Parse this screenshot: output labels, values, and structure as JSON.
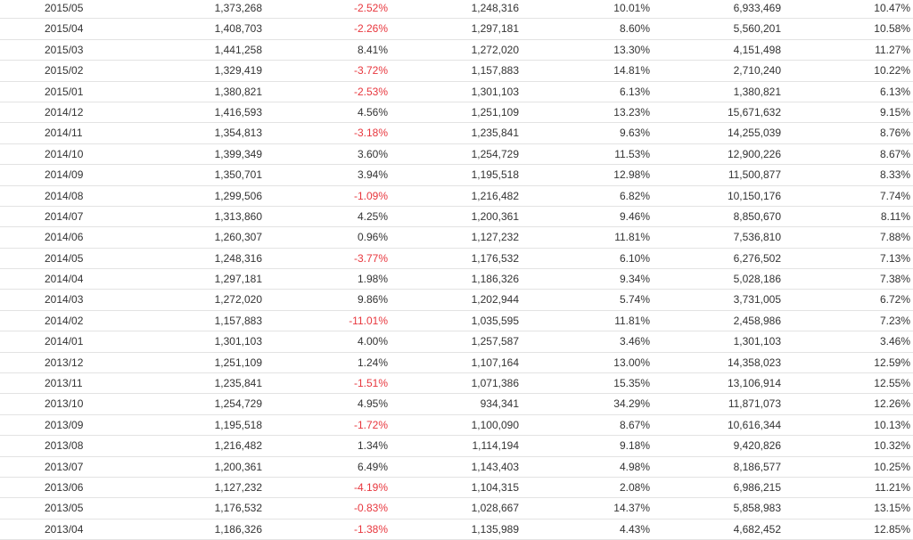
{
  "colors": {
    "text": "#333333",
    "negative": "#e8373e",
    "divider": "#e3e3e3"
  },
  "rows": [
    [
      "2015/05",
      "1,373,268",
      "-2.52%",
      "1,248,316",
      "10.01%",
      "6,933,469",
      "10.47%"
    ],
    [
      "2015/04",
      "1,408,703",
      "-2.26%",
      "1,297,181",
      "8.60%",
      "5,560,201",
      "10.58%"
    ],
    [
      "2015/03",
      "1,441,258",
      "8.41%",
      "1,272,020",
      "13.30%",
      "4,151,498",
      "11.27%"
    ],
    [
      "2015/02",
      "1,329,419",
      "-3.72%",
      "1,157,883",
      "14.81%",
      "2,710,240",
      "10.22%"
    ],
    [
      "2015/01",
      "1,380,821",
      "-2.53%",
      "1,301,103",
      "6.13%",
      "1,380,821",
      "6.13%"
    ],
    [
      "2014/12",
      "1,416,593",
      "4.56%",
      "1,251,109",
      "13.23%",
      "15,671,632",
      "9.15%"
    ],
    [
      "2014/11",
      "1,354,813",
      "-3.18%",
      "1,235,841",
      "9.63%",
      "14,255,039",
      "8.76%"
    ],
    [
      "2014/10",
      "1,399,349",
      "3.60%",
      "1,254,729",
      "11.53%",
      "12,900,226",
      "8.67%"
    ],
    [
      "2014/09",
      "1,350,701",
      "3.94%",
      "1,195,518",
      "12.98%",
      "11,500,877",
      "8.33%"
    ],
    [
      "2014/08",
      "1,299,506",
      "-1.09%",
      "1,216,482",
      "6.82%",
      "10,150,176",
      "7.74%"
    ],
    [
      "2014/07",
      "1,313,860",
      "4.25%",
      "1,200,361",
      "9.46%",
      "8,850,670",
      "8.11%"
    ],
    [
      "2014/06",
      "1,260,307",
      "0.96%",
      "1,127,232",
      "11.81%",
      "7,536,810",
      "7.88%"
    ],
    [
      "2014/05",
      "1,248,316",
      "-3.77%",
      "1,176,532",
      "6.10%",
      "6,276,502",
      "7.13%"
    ],
    [
      "2014/04",
      "1,297,181",
      "1.98%",
      "1,186,326",
      "9.34%",
      "5,028,186",
      "7.38%"
    ],
    [
      "2014/03",
      "1,272,020",
      "9.86%",
      "1,202,944",
      "5.74%",
      "3,731,005",
      "6.72%"
    ],
    [
      "2014/02",
      "1,157,883",
      "-11.01%",
      "1,035,595",
      "11.81%",
      "2,458,986",
      "7.23%"
    ],
    [
      "2014/01",
      "1,301,103",
      "4.00%",
      "1,257,587",
      "3.46%",
      "1,301,103",
      "3.46%"
    ],
    [
      "2013/12",
      "1,251,109",
      "1.24%",
      "1,107,164",
      "13.00%",
      "14,358,023",
      "12.59%"
    ],
    [
      "2013/11",
      "1,235,841",
      "-1.51%",
      "1,071,386",
      "15.35%",
      "13,106,914",
      "12.55%"
    ],
    [
      "2013/10",
      "1,254,729",
      "4.95%",
      "934,341",
      "34.29%",
      "11,871,073",
      "12.26%"
    ],
    [
      "2013/09",
      "1,195,518",
      "-1.72%",
      "1,100,090",
      "8.67%",
      "10,616,344",
      "10.13%"
    ],
    [
      "2013/08",
      "1,216,482",
      "1.34%",
      "1,114,194",
      "9.18%",
      "9,420,826",
      "10.32%"
    ],
    [
      "2013/07",
      "1,200,361",
      "6.49%",
      "1,143,403",
      "4.98%",
      "8,186,577",
      "10.25%"
    ],
    [
      "2013/06",
      "1,127,232",
      "-4.19%",
      "1,104,315",
      "2.08%",
      "6,986,215",
      "11.21%"
    ],
    [
      "2013/05",
      "1,176,532",
      "-0.83%",
      "1,028,667",
      "14.37%",
      "5,858,983",
      "13.15%"
    ],
    [
      "2013/04",
      "1,186,326",
      "-1.38%",
      "1,135,989",
      "4.43%",
      "4,682,452",
      "12.85%"
    ]
  ]
}
